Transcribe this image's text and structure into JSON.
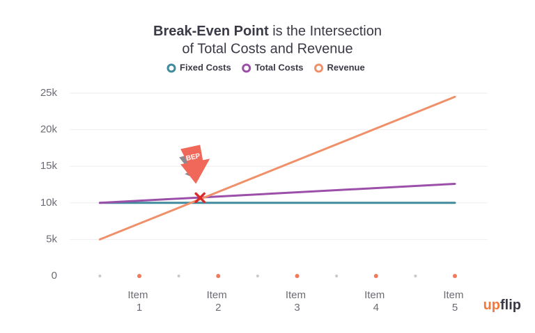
{
  "chart_data": {
    "type": "line",
    "title_bold": "Break-Even Point",
    "title_line1": "is the Intersection",
    "title_line2": "of Total Costs and Revenue",
    "x": [
      0.5,
      5
    ],
    "xlim": [
      0,
      5.5
    ],
    "xticks": [
      {
        "value": 1,
        "label": "Item 1"
      },
      {
        "value": 2,
        "label": "Item 2"
      },
      {
        "value": 3,
        "label": "Item 3"
      },
      {
        "value": 4,
        "label": "Item 4"
      },
      {
        "value": 5,
        "label": "Item 5"
      }
    ],
    "ylim": [
      0,
      25000
    ],
    "yticks": [
      0,
      {
        "value": 5000,
        "label": "5k"
      },
      {
        "value": 10000,
        "label": "10k"
      },
      {
        "value": 15000,
        "label": "15k"
      },
      {
        "value": 20000,
        "label": "20k"
      },
      {
        "value": 25000,
        "label": "25k"
      }
    ],
    "grid": true,
    "series": [
      {
        "name": "Fixed Costs",
        "color": "#3f8a9c",
        "values": [
          10000,
          10000
        ]
      },
      {
        "name": "Total Costs",
        "color": "#9b4fa8",
        "values": [
          10000,
          12600
        ]
      },
      {
        "name": "Revenue",
        "color": "#f0906a",
        "values": [
          5000,
          24500
        ]
      }
    ],
    "bep": {
      "x": 1.77,
      "y": 10700,
      "label": "BEP"
    },
    "logo": [
      "up",
      "flip"
    ]
  }
}
